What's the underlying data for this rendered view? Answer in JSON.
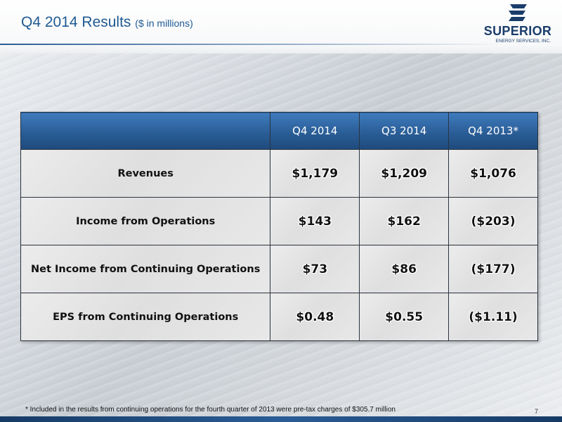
{
  "slide": {
    "title": "Q4 2014 Results",
    "title_suffix": "($ in millions)",
    "footnote": "* Included in the results from continuing operations for the fourth quarter of 2013 were pre-tax charges of $305.7 million",
    "page_number": "7"
  },
  "logo": {
    "name": "SUPERIOR",
    "tagline": "ENERGY SERVICES, INC.",
    "icon": "superior-s-mark-icon"
  },
  "table": {
    "columns": [
      "",
      "Q4 2014",
      "Q3 2014",
      "Q4 2013*"
    ],
    "rows": [
      {
        "label": "Revenues",
        "values": [
          "$1,179",
          "$1,209",
          "$1,076"
        ]
      },
      {
        "label": "Income from Operations",
        "values": [
          "$143",
          "$162",
          "($203)"
        ]
      },
      {
        "label": "Net Income from Continuing Operations",
        "values": [
          "$73",
          "$86",
          "($177)"
        ]
      },
      {
        "label": "EPS from Continuing Operations",
        "values": [
          "$0.48",
          "$0.55",
          "($1.11)"
        ]
      }
    ]
  },
  "colors": {
    "title": "#1f5a93",
    "header_fill": "#2a5d96",
    "brand_navy": "#1a3d6b"
  }
}
